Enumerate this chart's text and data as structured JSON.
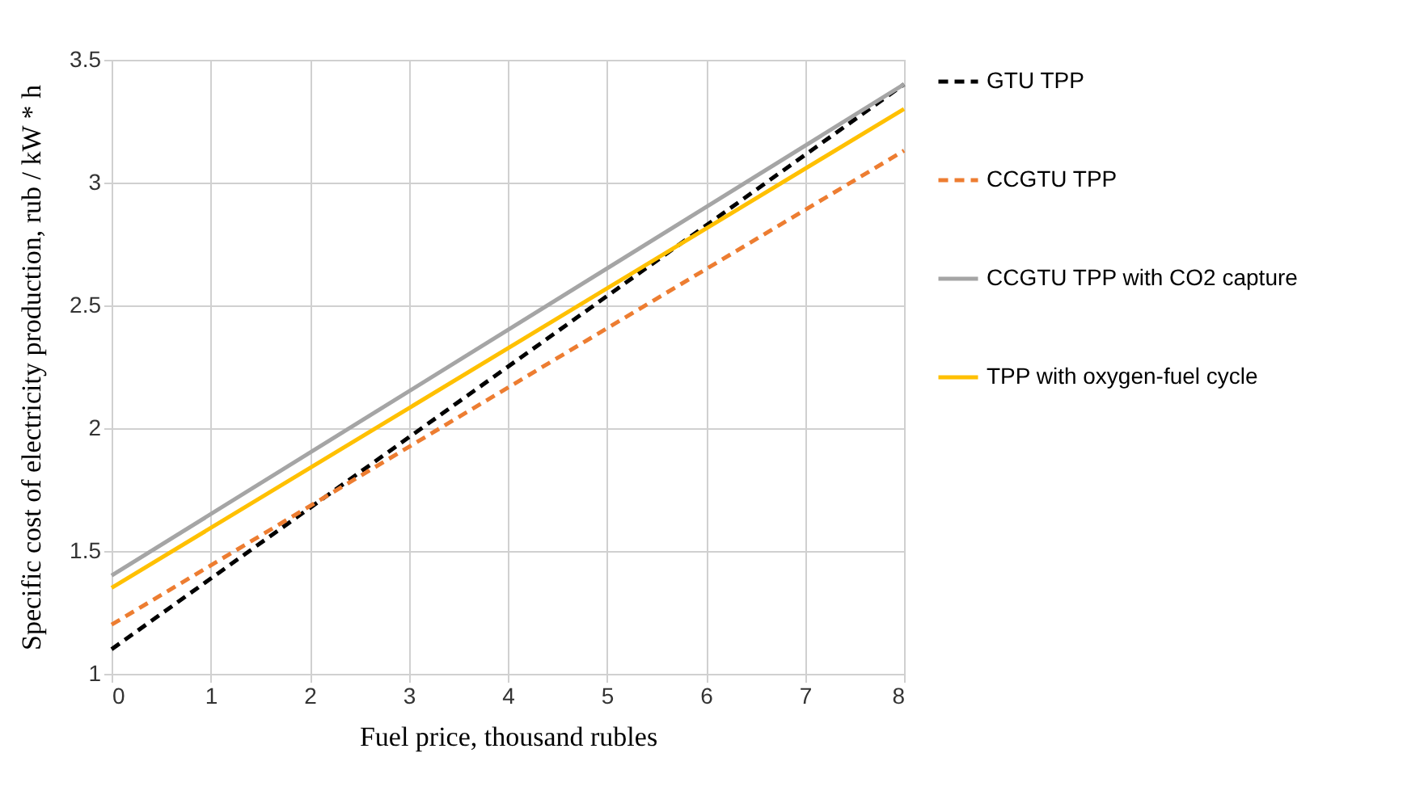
{
  "chart_data": {
    "type": "line",
    "xlabel": "Fuel price, thousand rubles",
    "ylabel": "Specific cost of electricity production, rub / kW * h",
    "x": [
      0,
      8
    ],
    "xlim": [
      0,
      8
    ],
    "xticks": [
      0,
      1,
      2,
      3,
      4,
      5,
      6,
      7,
      8
    ],
    "ylim": [
      1,
      3.5
    ],
    "yticks": [
      1,
      1.5,
      2,
      2.5,
      3,
      3.5
    ],
    "grid": true,
    "legend": "right",
    "marker": "none",
    "series": [
      {
        "name": "GTU TPP",
        "color": "#000000",
        "line_style": "dashed",
        "values": [
          1.1,
          3.4
        ]
      },
      {
        "name": "CCGTU TPP",
        "color": "#ed7d31",
        "line_style": "dashed",
        "values": [
          1.2,
          3.13
        ]
      },
      {
        "name": "CCGTU TPP with CO2 capture",
        "color": "#a5a5a5",
        "line_style": "solid",
        "values": [
          1.4,
          3.4
        ]
      },
      {
        "name": "TPP with oxygen-fuel cycle",
        "color": "#ffc000",
        "line_style": "solid",
        "values": [
          1.35,
          3.3
        ]
      }
    ]
  }
}
